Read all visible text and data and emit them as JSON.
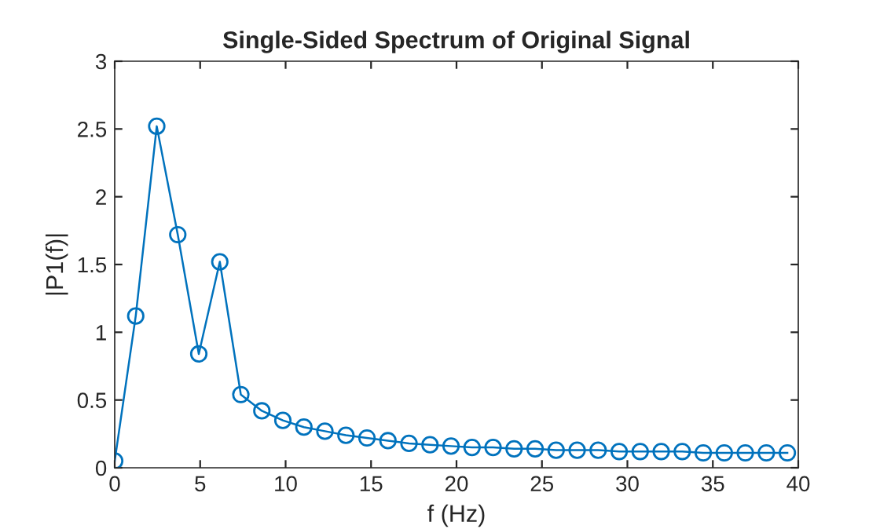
{
  "chart_data": {
    "type": "line",
    "title": "Single-Sided Spectrum of Original Signal",
    "xlabel": "f (Hz)",
    "ylabel": "|P1(f)|",
    "x": [
      0,
      1.23,
      2.46,
      3.69,
      4.92,
      6.15,
      7.38,
      8.61,
      9.84,
      11.07,
      12.3,
      13.53,
      14.76,
      15.99,
      17.22,
      18.45,
      19.68,
      20.91,
      22.14,
      23.37,
      24.6,
      25.83,
      27.06,
      28.29,
      29.52,
      30.75,
      31.98,
      33.21,
      34.44,
      35.67,
      36.9,
      38.13,
      39.36
    ],
    "series": [
      {
        "color": "#0072bd",
        "values": [
          0.05,
          1.12,
          2.52,
          1.72,
          0.84,
          1.52,
          0.54,
          0.42,
          0.35,
          0.3,
          0.27,
          0.24,
          0.22,
          0.2,
          0.18,
          0.17,
          0.16,
          0.15,
          0.15,
          0.14,
          0.14,
          0.13,
          0.13,
          0.13,
          0.12,
          0.12,
          0.12,
          0.12,
          0.11,
          0.11,
          0.11,
          0.11,
          0.11
        ]
      }
    ],
    "xlim": [
      0,
      40
    ],
    "xticks": [
      0,
      5,
      10,
      15,
      20,
      25,
      30,
      35,
      40
    ],
    "ylim": [
      0,
      3
    ],
    "yticks": [
      0,
      0.5,
      1,
      1.5,
      2,
      2.5,
      3
    ],
    "marker": "circle",
    "line_style": "solid",
    "grid": false,
    "legend": false
  }
}
